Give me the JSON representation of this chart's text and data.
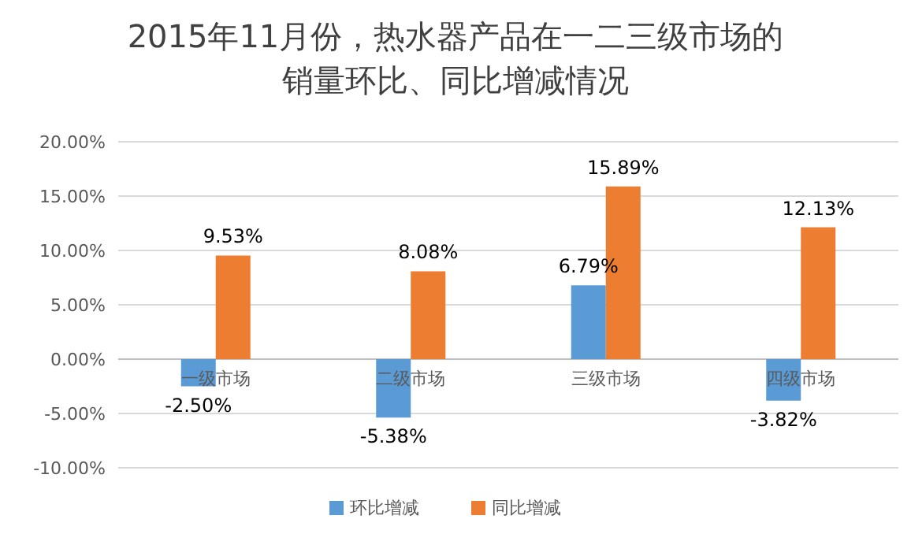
{
  "chart_data": {
    "type": "bar",
    "title": "2015年11月份，热水器产品在一二三级市场的销量环比、同比增减情况",
    "categories": [
      "一级市场",
      "二级市场",
      "三级市场",
      "四级市场"
    ],
    "series": [
      {
        "name": "环比增减",
        "color": "#5b9bd5",
        "values": [
          -2.5,
          -5.38,
          6.79,
          -3.82
        ],
        "value_labels": [
          "-2.50%",
          "-5.38%",
          "6.79%",
          "-3.82%"
        ]
      },
      {
        "name": "同比增减",
        "color": "#ed7d31",
        "values": [
          9.53,
          8.08,
          15.89,
          12.13
        ],
        "value_labels": [
          "9.53%",
          "8.08%",
          "15.89%",
          "12.13%"
        ]
      }
    ],
    "ylim": [
      -10,
      20
    ],
    "yticks": [
      {
        "value": -10,
        "label": "-10.00%"
      },
      {
        "value": -5,
        "label": "-5.00%"
      },
      {
        "value": 0,
        "label": "0.00%"
      },
      {
        "value": 5,
        "label": "5.00%"
      },
      {
        "value": 10,
        "label": "10.00%"
      },
      {
        "value": 15,
        "label": "15.00%"
      },
      {
        "value": 20,
        "label": "20.00%"
      }
    ],
    "grid": "y",
    "legend": "bottom"
  }
}
